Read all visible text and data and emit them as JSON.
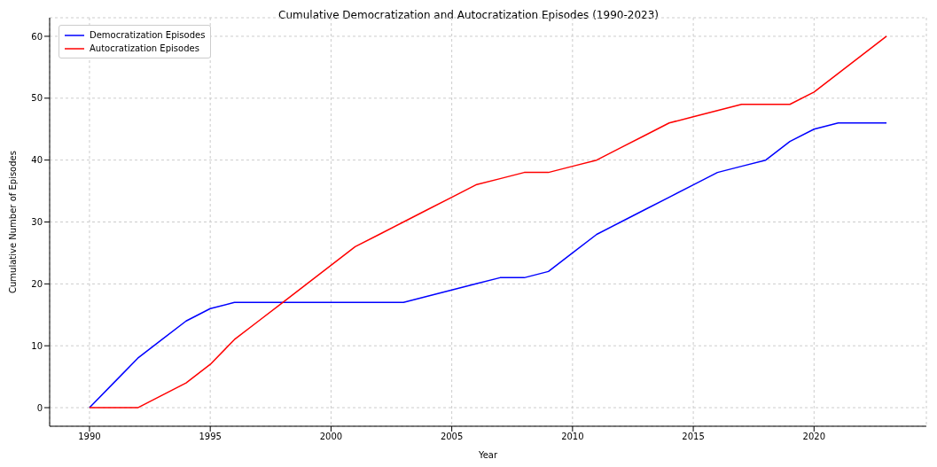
{
  "chart_data": {
    "type": "line",
    "title": "Cumulative Democratization and Autocratization Episodes (1990-2023)",
    "xlabel": "Year",
    "ylabel": "Cumulative Number of Episodes",
    "x": [
      1990,
      1991,
      1992,
      1993,
      1994,
      1995,
      1996,
      1997,
      1998,
      1999,
      2000,
      2001,
      2002,
      2003,
      2004,
      2005,
      2006,
      2007,
      2008,
      2009,
      2010,
      2011,
      2012,
      2013,
      2014,
      2015,
      2016,
      2017,
      2018,
      2019,
      2020,
      2021,
      2022,
      2023
    ],
    "series": [
      {
        "name": "Democratization Episodes",
        "color": "#0000ff",
        "values": [
          0,
          4,
          8,
          11,
          14,
          16,
          17,
          17,
          17,
          17,
          17,
          17,
          17,
          17,
          18,
          19,
          20,
          21,
          21,
          22,
          25,
          28,
          30,
          32,
          34,
          36,
          38,
          39,
          40,
          43,
          45,
          46,
          46,
          46
        ]
      },
      {
        "name": "Autocratization Episodes",
        "color": "#ff0000",
        "values": [
          0,
          0,
          0,
          2,
          4,
          7,
          11,
          14,
          17,
          20,
          23,
          26,
          28,
          30,
          32,
          34,
          36,
          37,
          38,
          38,
          39,
          40,
          42,
          44,
          46,
          47,
          48,
          49,
          49,
          49,
          51,
          54,
          57,
          60
        ]
      }
    ],
    "xlim": [
      1988.35,
      2024.65
    ],
    "xticks": [
      1990,
      1995,
      2000,
      2005,
      2010,
      2015,
      2020
    ],
    "ylim": [
      -3,
      63
    ],
    "yticks": [
      0,
      10,
      20,
      30,
      40,
      50,
      60
    ],
    "grid": true,
    "legend": "top left",
    "marker": "none",
    "line_style": "solid"
  }
}
